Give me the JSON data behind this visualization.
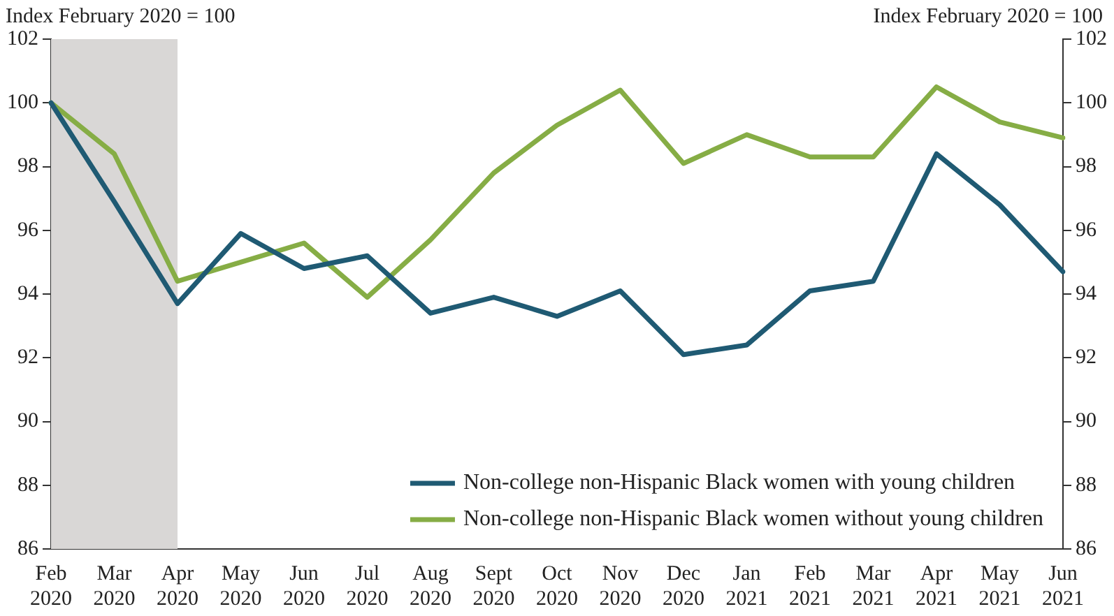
{
  "chart_data": {
    "type": "line",
    "ylabel": "Index February 2020 = 100",
    "y2label": "Index February 2020 = 100",
    "categories": [
      "Feb 2020",
      "Mar 2020",
      "Apr 2020",
      "May 2020",
      "Jun 2020",
      "Jul 2020",
      "Aug 2020",
      "Sept 2020",
      "Oct 2020",
      "Nov 2020",
      "Dec 2020",
      "Jan 2021",
      "Feb 2021",
      "Mar 2021",
      "Apr 2021",
      "May 2021",
      "Jun 2021"
    ],
    "series": [
      {
        "name": "Non-college non-Hispanic Black women with young children",
        "color": "#1f5a73",
        "values": [
          100,
          96.9,
          93.7,
          95.9,
          94.8,
          95.2,
          93.4,
          93.9,
          93.3,
          94.1,
          92.1,
          92.4,
          94.1,
          94.4,
          98.4,
          96.8,
          94.7
        ]
      },
      {
        "name": "Non-college non-Hispanic Black women without young children",
        "color": "#86ad45",
        "values": [
          100,
          98.4,
          94.4,
          95.0,
          95.6,
          93.9,
          95.7,
          97.8,
          99.3,
          100.4,
          98.1,
          99.0,
          98.3,
          98.3,
          100.5,
          99.4,
          98.9
        ]
      }
    ],
    "ylim": [
      86,
      102
    ],
    "yticks": [
      86,
      88,
      90,
      92,
      94,
      96,
      98,
      100,
      102
    ],
    "y2lim": [
      86,
      102
    ],
    "y2ticks": [
      86,
      88,
      90,
      92,
      94,
      96,
      98,
      100,
      102
    ],
    "bands": [
      {
        "axis": "x",
        "from": "Feb 2020",
        "to": "Apr 2020",
        "color": "#d9d7d6"
      }
    ],
    "grid": false,
    "legend": "bottom right",
    "marker": "none",
    "line_style": "solid"
  }
}
